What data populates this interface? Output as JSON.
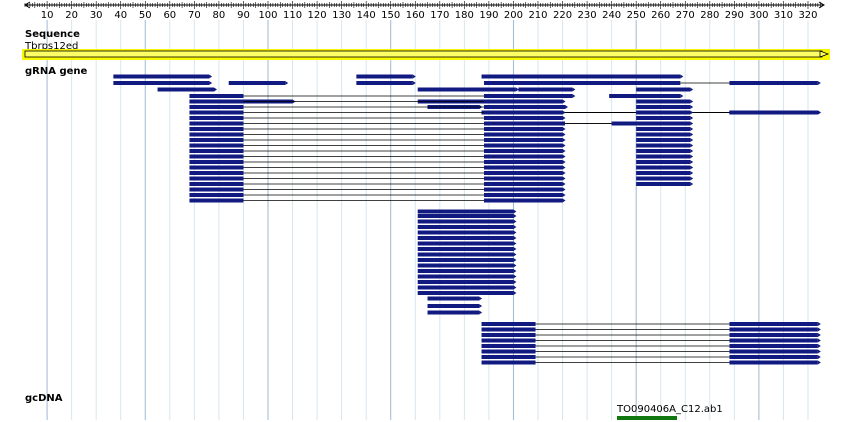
{
  "ruler": {
    "ticks": [
      "10",
      "20",
      "30",
      "40",
      "50",
      "60",
      "70",
      "80",
      "90",
      "100",
      "110",
      "120",
      "130",
      "140",
      "150",
      "160",
      "170",
      "180",
      "190",
      "200",
      "210",
      "220",
      "230",
      "240",
      "250",
      "260",
      "270",
      "280",
      "290",
      "300",
      "310",
      "320"
    ],
    "range": [
      1,
      325
    ]
  },
  "tracks": {
    "sequence": {
      "label": "Sequence",
      "feature_name": "Tbrps12ed",
      "color": "#f7f700"
    },
    "grna": {
      "label": "gRNA gene",
      "color": "#101a80",
      "features": [
        {
          "blocks": [
            [
              37,
              76
            ]
          ],
          "strand": "+"
        },
        {
          "blocks": [
            [
              37,
              76
            ]
          ],
          "strand": "+"
        },
        {
          "blocks": [
            [
              84,
              107
            ]
          ],
          "strand": "+"
        },
        {
          "blocks": [
            [
              136,
              159
            ]
          ],
          "strand": "+"
        },
        {
          "blocks": [
            [
              136,
              159
            ]
          ],
          "strand": "+"
        },
        {
          "blocks": [
            [
              187,
              268
            ]
          ],
          "strand": "+"
        },
        {
          "blocks": [
            [
              188,
              268
            ],
            [
              288,
              324
            ]
          ],
          "strand": "+"
        },
        {
          "blocks": [
            [
              55,
              78
            ]
          ],
          "strand": "+"
        },
        {
          "blocks": [
            [
              161,
              201
            ]
          ],
          "strand": "+"
        },
        {
          "blocks": [
            [
              202,
              224
            ]
          ],
          "strand": "+"
        },
        {
          "blocks": [
            [
              239,
              258
            ]
          ],
          "strand": "+"
        },
        {
          "blocks": [
            [
              250,
              272
            ]
          ],
          "strand": "+"
        },
        {
          "blocks": [
            [
              68,
              90
            ],
            [
              188,
              220
            ]
          ],
          "strand": "+"
        },
        {
          "blocks": [
            [
              202,
              224
            ]
          ],
          "strand": "+"
        },
        {
          "blocks": [
            [
              250,
              268
            ]
          ],
          "strand": "+"
        },
        {
          "blocks": [
            [
              89,
              110
            ]
          ],
          "strand": "+"
        },
        {
          "blocks": [
            [
              161,
              200
            ]
          ],
          "strand": "+"
        },
        {
          "blocks": [
            [
              165,
              186
            ]
          ],
          "strand": "+"
        },
        {
          "blocks": [
            [
              165,
              186
            ]
          ],
          "strand": "+"
        },
        {
          "blocks": [
            [
              165,
              186
            ]
          ],
          "strand": "+"
        },
        {
          "blocks": [
            [
              165,
              186
            ]
          ],
          "strand": "+"
        },
        {
          "blocks": [
            [
              200,
              221
            ]
          ],
          "strand": "+"
        },
        {
          "blocks": [
            [
              187,
              209
            ],
            [
              288,
              324
            ]
          ],
          "strand": "+"
        },
        {
          "blocks": [
            [
              187,
              209
            ],
            [
              288,
              317
            ]
          ],
          "strand": "+"
        },
        {
          "blocks": [
            [
              187,
              209
            ],
            [
              288,
              324
            ]
          ],
          "strand": "+"
        },
        {
          "blocks": [
            [
              187,
              209
            ],
            [
              288,
              324
            ]
          ],
          "strand": "+"
        },
        {
          "blocks": [
            [
              187,
              209
            ],
            [
              288,
              324
            ]
          ],
          "strand": "+"
        },
        {
          "blocks": [
            [
              188,
              208
            ]
          ],
          "strand": "+"
        },
        {
          "blocks": [
            [
              197,
              221
            ],
            [
              240,
              268
            ]
          ],
          "strand": "+"
        },
        {
          "blocks": [
            [
              197,
              221
            ],
            [
              240,
              268
            ]
          ],
          "strand": "+"
        }
      ]
    },
    "gcdna": {
      "label": "gcDNA",
      "feature_name": "TO090406A_C12.ab1",
      "color": "#117711"
    }
  }
}
